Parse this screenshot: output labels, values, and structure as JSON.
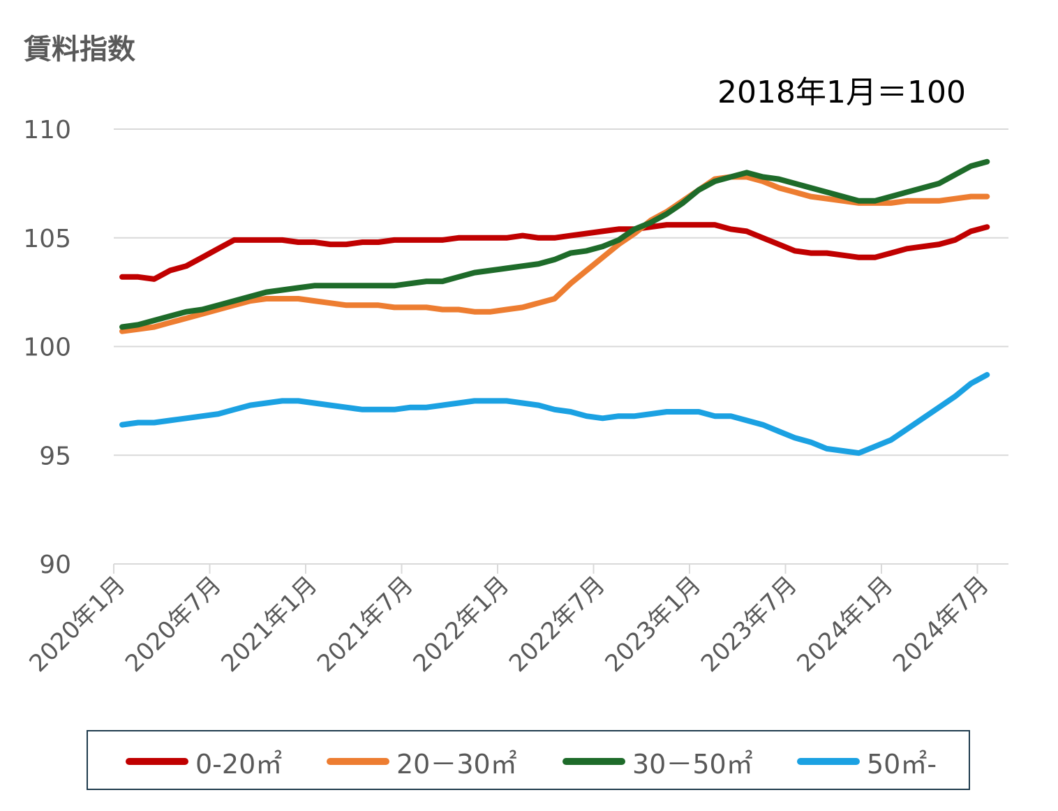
{
  "chart_data": {
    "type": "line",
    "title": "賃料指数",
    "note": "2018年1月＝100",
    "xlabel": "",
    "ylabel": "",
    "ylim": [
      90,
      110
    ],
    "yticks": [
      90,
      95,
      100,
      105,
      110
    ],
    "grid": true,
    "legend_position": "bottom",
    "x_tick_labels": [
      "2020年1月",
      "2020年7月",
      "2021年1月",
      "2021年7月",
      "2022年1月",
      "2022年7月",
      "2023年1月",
      "2023年7月",
      "2024年1月",
      "2024年7月"
    ],
    "x_start": "2020年1月",
    "x_step": "1 month",
    "series": [
      {
        "name": "0-20㎡",
        "color": "#c00000",
        "values": [
          103.2,
          103.2,
          103.1,
          103.5,
          103.7,
          104.1,
          104.5,
          104.9,
          104.9,
          104.9,
          104.9,
          104.8,
          104.8,
          104.7,
          104.7,
          104.8,
          104.8,
          104.9,
          104.9,
          104.9,
          104.9,
          105.0,
          105.0,
          105.0,
          105.0,
          105.1,
          105.0,
          105.0,
          105.1,
          105.2,
          105.3,
          105.4,
          105.4,
          105.5,
          105.6,
          105.6,
          105.6,
          105.6,
          105.4,
          105.3,
          105.0,
          104.7,
          104.4,
          104.3,
          104.3,
          104.2,
          104.1,
          104.1,
          104.3,
          104.5,
          104.6,
          104.7,
          104.9,
          105.3,
          105.5
        ]
      },
      {
        "name": "20－30㎡",
        "color": "#ed7d31",
        "values": [
          100.7,
          100.8,
          100.9,
          101.1,
          101.3,
          101.5,
          101.7,
          101.9,
          102.1,
          102.2,
          102.2,
          102.2,
          102.1,
          102.0,
          101.9,
          101.9,
          101.9,
          101.8,
          101.8,
          101.8,
          101.7,
          101.7,
          101.6,
          101.6,
          101.7,
          101.8,
          102.0,
          102.2,
          102.9,
          103.5,
          104.1,
          104.7,
          105.2,
          105.8,
          106.2,
          106.7,
          107.2,
          107.7,
          107.8,
          107.8,
          107.6,
          107.3,
          107.1,
          106.9,
          106.8,
          106.7,
          106.6,
          106.6,
          106.6,
          106.7,
          106.7,
          106.7,
          106.8,
          106.9,
          106.9
        ]
      },
      {
        "name": "30－50㎡",
        "color": "#1e6b2a",
        "values": [
          100.9,
          101.0,
          101.2,
          101.4,
          101.6,
          101.7,
          101.9,
          102.1,
          102.3,
          102.5,
          102.6,
          102.7,
          102.8,
          102.8,
          102.8,
          102.8,
          102.8,
          102.8,
          102.9,
          103.0,
          103.0,
          103.2,
          103.4,
          103.5,
          103.6,
          103.7,
          103.8,
          104.0,
          104.3,
          104.4,
          104.6,
          104.9,
          105.4,
          105.7,
          106.1,
          106.6,
          107.2,
          107.6,
          107.8,
          108.0,
          107.8,
          107.7,
          107.5,
          107.3,
          107.1,
          106.9,
          106.7,
          106.7,
          106.9,
          107.1,
          107.3,
          107.5,
          107.9,
          108.3,
          108.5
        ]
      },
      {
        "name": "50㎡-",
        "color": "#1ba1e2",
        "values": [
          96.4,
          96.5,
          96.5,
          96.6,
          96.7,
          96.8,
          96.9,
          97.1,
          97.3,
          97.4,
          97.5,
          97.5,
          97.4,
          97.3,
          97.2,
          97.1,
          97.1,
          97.1,
          97.2,
          97.2,
          97.3,
          97.4,
          97.5,
          97.5,
          97.5,
          97.4,
          97.3,
          97.1,
          97.0,
          96.8,
          96.7,
          96.8,
          96.8,
          96.9,
          97.0,
          97.0,
          97.0,
          96.8,
          96.8,
          96.6,
          96.4,
          96.1,
          95.8,
          95.6,
          95.3,
          95.2,
          95.1,
          95.4,
          95.7,
          96.2,
          96.7,
          97.2,
          97.7,
          98.3,
          98.7
        ]
      }
    ]
  }
}
